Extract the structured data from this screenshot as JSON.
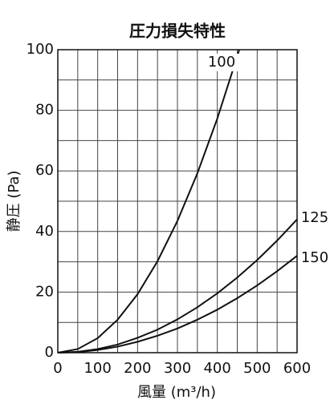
{
  "chart_data": {
    "type": "line",
    "title": "圧力損失特性",
    "x_label": "風量 (m³/h)",
    "y_label": "静圧 (Pa)",
    "xlim": [
      0,
      600
    ],
    "xticks": [
      0,
      100,
      200,
      300,
      400,
      500,
      600
    ],
    "x_minor_ticks": [
      50,
      150,
      250,
      350,
      450,
      550
    ],
    "ylim": [
      0,
      100
    ],
    "yticks": [
      0,
      20,
      40,
      60,
      80,
      100
    ],
    "y_minor_ticks": [
      10,
      30,
      50,
      70,
      90
    ],
    "grid": true,
    "series": [
      {
        "name": "100",
        "color": "#111111",
        "x": [
          0,
          50,
          100,
          150,
          200,
          250,
          300,
          350,
          400,
          450,
          455
        ],
        "values": [
          0,
          1.2,
          4.8,
          10.9,
          19.3,
          30.2,
          43.5,
          59.2,
          77.3,
          97.8,
          100
        ]
      },
      {
        "name": "125",
        "color": "#111111",
        "x": [
          0,
          50,
          100,
          150,
          200,
          250,
          300,
          350,
          400,
          450,
          500,
          550,
          600
        ],
        "values": [
          0,
          0.3,
          1.2,
          2.7,
          4.9,
          7.6,
          11,
          15,
          19.6,
          24.8,
          30.6,
          37,
          44
        ]
      },
      {
        "name": "150",
        "color": "#111111",
        "x": [
          0,
          50,
          100,
          150,
          200,
          250,
          300,
          350,
          400,
          450,
          500,
          550,
          600
        ],
        "values": [
          0,
          0.2,
          0.9,
          2,
          3.6,
          5.6,
          8,
          10.9,
          14.2,
          18,
          22.2,
          26.9,
          32
        ]
      }
    ]
  }
}
